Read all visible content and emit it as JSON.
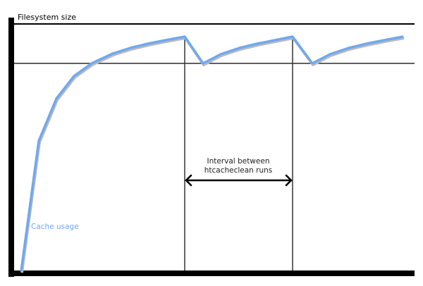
{
  "labels": {
    "y_axis": "Filesystem size",
    "series": "Cache usage",
    "interval_line1": "Interval between",
    "interval_line2": "htcacheclean runs"
  },
  "colors": {
    "curve": "#6fa8f0",
    "series_label": "#6fa8f0",
    "axis": "#000000"
  }
}
